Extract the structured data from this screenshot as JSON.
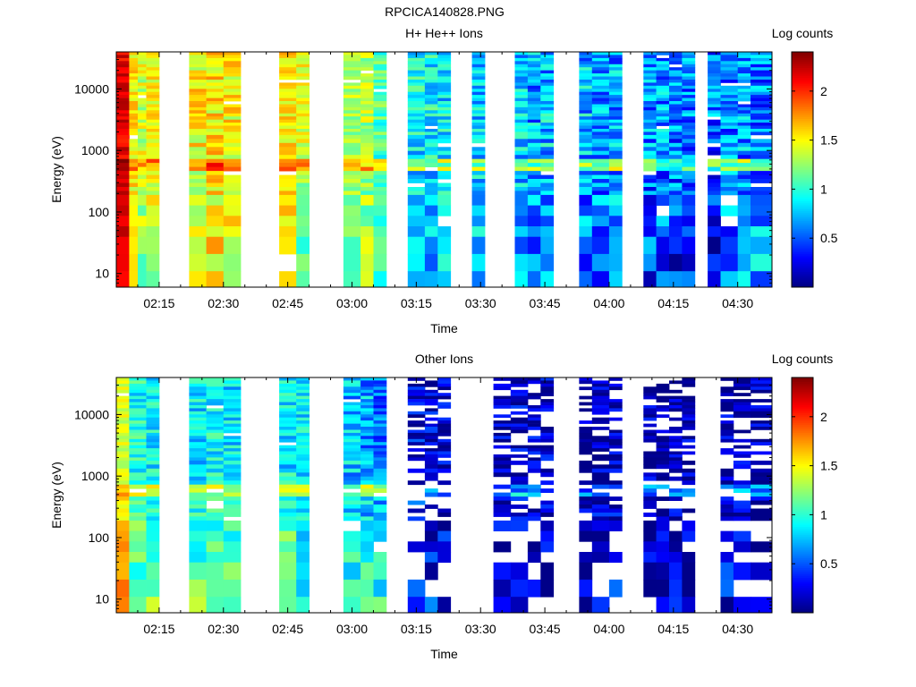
{
  "figure_title": "RPCICA140828.PNG",
  "chart_data": [
    {
      "type": "heatmap",
      "title": "H+ He++ Ions",
      "xlabel": "Time",
      "ylabel": "Energy (eV)",
      "yscale": "log",
      "ylim": [
        6,
        40000
      ],
      "xlim": [
        "02:05",
        "04:38"
      ],
      "x_ticks": [
        "02:15",
        "02:30",
        "02:45",
        "03:00",
        "03:15",
        "03:30",
        "03:45",
        "04:00",
        "04:15",
        "04:30"
      ],
      "y_ticks": [
        "10",
        "100",
        "1000",
        "10000"
      ],
      "colorbar": {
        "label": "Log counts",
        "range": [
          0,
          2.4
        ],
        "ticks": [
          "0.5",
          "1",
          "1.5",
          "2"
        ],
        "colormap": "jet"
      },
      "segments": [
        {
          "start": "02:05",
          "end": "02:08",
          "level": 2.15,
          "lowlevel": 2.2,
          "spread": 0.15
        },
        {
          "start": "02:08",
          "end": "02:10",
          "level": 1.55,
          "lowlevel": 1.4,
          "spread": 0.2
        },
        {
          "start": "02:10",
          "end": "02:12",
          "level": 1.4,
          "lowlevel": 1.25,
          "spread": 0.25
        },
        {
          "start": "02:12",
          "end": "02:15",
          "level": 1.5,
          "lowlevel": 1.3,
          "spread": 0.2
        },
        {
          "start": "02:22",
          "end": "02:26",
          "level": 1.5,
          "lowlevel": 1.3,
          "spread": 0.25
        },
        {
          "start": "02:26",
          "end": "02:30",
          "level": 1.55,
          "lowlevel": 1.5,
          "spread": 0.25
        },
        {
          "start": "02:30",
          "end": "02:34",
          "level": 1.5,
          "lowlevel": 1.4,
          "spread": 0.25
        },
        {
          "start": "02:43",
          "end": "02:47",
          "level": 1.55,
          "lowlevel": 1.55,
          "spread": 0.2
        },
        {
          "start": "02:47",
          "end": "02:50",
          "level": 1.45,
          "lowlevel": 1.0,
          "spread": 0.2
        },
        {
          "start": "02:58",
          "end": "03:02",
          "level": 1.3,
          "lowlevel": 1.1,
          "spread": 0.2
        },
        {
          "start": "03:02",
          "end": "03:05",
          "level": 1.3,
          "lowlevel": 1.2,
          "spread": 0.25
        },
        {
          "start": "03:05",
          "end": "03:08",
          "level": 1.1,
          "lowlevel": 0.95,
          "spread": 0.25
        },
        {
          "start": "03:13",
          "end": "03:17",
          "level": 0.9,
          "lowlevel": 0.6,
          "spread": 0.3
        },
        {
          "start": "03:17",
          "end": "03:20",
          "level": 0.9,
          "lowlevel": 0.6,
          "spread": 0.3
        },
        {
          "start": "03:20",
          "end": "03:23",
          "level": 0.85,
          "lowlevel": 0.7,
          "spread": 0.3
        },
        {
          "start": "03:28",
          "end": "03:31",
          "level": 0.8,
          "lowlevel": 0.7,
          "spread": 0.3
        },
        {
          "start": "03:38",
          "end": "03:41",
          "level": 0.8,
          "lowlevel": 0.7,
          "spread": 0.3
        },
        {
          "start": "03:41",
          "end": "03:44",
          "level": 0.7,
          "lowlevel": 0.4,
          "spread": 0.35
        },
        {
          "start": "03:44",
          "end": "03:47",
          "level": 0.75,
          "lowlevel": 0.6,
          "spread": 0.35
        },
        {
          "start": "03:53",
          "end": "03:56",
          "level": 0.75,
          "lowlevel": 0.45,
          "spread": 0.35
        },
        {
          "start": "03:56",
          "end": "04:00",
          "level": 0.7,
          "lowlevel": 0.55,
          "spread": 0.35
        },
        {
          "start": "04:00",
          "end": "04:03",
          "level": 0.7,
          "lowlevel": 0.55,
          "spread": 0.35
        },
        {
          "start": "04:08",
          "end": "04:11",
          "level": 0.65,
          "lowlevel": 0.35,
          "spread": 0.35
        },
        {
          "start": "04:11",
          "end": "04:14",
          "level": 0.65,
          "lowlevel": 0.4,
          "spread": 0.35
        },
        {
          "start": "04:14",
          "end": "04:17",
          "level": 0.6,
          "lowlevel": 0.35,
          "spread": 0.35
        },
        {
          "start": "04:17",
          "end": "04:20",
          "level": 0.6,
          "lowlevel": 0.3,
          "spread": 0.35
        },
        {
          "start": "04:23",
          "end": "04:26",
          "level": 0.55,
          "lowlevel": 0.2,
          "spread": 0.35
        },
        {
          "start": "04:26",
          "end": "04:30",
          "level": 0.6,
          "lowlevel": 0.5,
          "spread": 0.35
        },
        {
          "start": "04:30",
          "end": "04:33",
          "level": 0.65,
          "lowlevel": 0.6,
          "spread": 0.35
        },
        {
          "start": "04:33",
          "end": "04:38",
          "level": 0.6,
          "lowlevel": 0.7,
          "spread": 0.35
        }
      ]
    },
    {
      "type": "heatmap",
      "title": "Other Ions",
      "xlabel": "Time",
      "ylabel": "Energy (eV)",
      "yscale": "log",
      "ylim": [
        6,
        40000
      ],
      "xlim": [
        "02:05",
        "04:38"
      ],
      "x_ticks": [
        "02:15",
        "02:30",
        "02:45",
        "03:00",
        "03:15",
        "03:30",
        "03:45",
        "04:00",
        "04:15",
        "04:30"
      ],
      "y_ticks": [
        "10",
        "100",
        "1000",
        "10000"
      ],
      "colorbar": {
        "label": "Log counts",
        "range": [
          0,
          2.4
        ],
        "ticks": [
          "0.5",
          "1",
          "1.5",
          "2"
        ],
        "colormap": "jet"
      },
      "segments": [
        {
          "start": "02:05",
          "end": "02:08",
          "level": 1.4,
          "lowlevel": 1.9,
          "spread": 0.15
        },
        {
          "start": "02:08",
          "end": "02:12",
          "level": 0.95,
          "lowlevel": 1.2,
          "spread": 0.25
        },
        {
          "start": "02:12",
          "end": "02:15",
          "level": 0.9,
          "lowlevel": 1.2,
          "spread": 0.25
        },
        {
          "start": "02:22",
          "end": "02:26",
          "level": 0.85,
          "lowlevel": 1.15,
          "spread": 0.25
        },
        {
          "start": "02:26",
          "end": "02:30",
          "level": 0.9,
          "lowlevel": 1.2,
          "spread": 0.25
        },
        {
          "start": "02:30",
          "end": "02:34",
          "level": 0.85,
          "lowlevel": 1.2,
          "spread": 0.25
        },
        {
          "start": "02:43",
          "end": "02:47",
          "level": 0.85,
          "lowlevel": 1.25,
          "spread": 0.25
        },
        {
          "start": "02:47",
          "end": "02:50",
          "level": 0.85,
          "lowlevel": 1.0,
          "spread": 0.25
        },
        {
          "start": "02:58",
          "end": "03:02",
          "level": 0.75,
          "lowlevel": 1.1,
          "spread": 0.3
        },
        {
          "start": "03:02",
          "end": "03:05",
          "level": 0.7,
          "lowlevel": 1.05,
          "spread": 0.3
        },
        {
          "start": "03:05",
          "end": "03:08",
          "level": 0.6,
          "lowlevel": 1.0,
          "spread": 0.3
        },
        {
          "start": "03:13",
          "end": "03:17",
          "level": 0.25,
          "lowlevel": 0.6,
          "spread": 0.3
        },
        {
          "start": "03:17",
          "end": "03:20",
          "level": 0.2,
          "lowlevel": 0.4,
          "spread": 0.3
        },
        {
          "start": "03:20",
          "end": "03:23",
          "level": 0.15,
          "lowlevel": 0.3,
          "spread": 0.3
        },
        {
          "start": "03:33",
          "end": "03:37",
          "level": 0.15,
          "lowlevel": 0.2,
          "spread": 0.3
        },
        {
          "start": "03:37",
          "end": "03:41",
          "level": 0.2,
          "lowlevel": 0.4,
          "spread": 0.3
        },
        {
          "start": "03:41",
          "end": "03:44",
          "level": 0.15,
          "lowlevel": 0.25,
          "spread": 0.3
        },
        {
          "start": "03:44",
          "end": "03:47",
          "level": 0.15,
          "lowlevel": 0.15,
          "spread": 0.3
        },
        {
          "start": "03:53",
          "end": "03:56",
          "level": 0.1,
          "lowlevel": 0.1,
          "spread": 0.3
        },
        {
          "start": "03:56",
          "end": "04:00",
          "level": 0.1,
          "lowlevel": 0.3,
          "spread": 0.3
        },
        {
          "start": "04:00",
          "end": "04:03",
          "level": 0.1,
          "lowlevel": 0.35,
          "spread": 0.3
        },
        {
          "start": "04:08",
          "end": "04:11",
          "level": 0.1,
          "lowlevel": 0.1,
          "spread": 0.3
        },
        {
          "start": "04:11",
          "end": "04:14",
          "level": 0.1,
          "lowlevel": 0.1,
          "spread": 0.3
        },
        {
          "start": "04:14",
          "end": "04:17",
          "level": 0.1,
          "lowlevel": 0.15,
          "spread": 0.3
        },
        {
          "start": "04:17",
          "end": "04:20",
          "level": 0.1,
          "lowlevel": 0.1,
          "spread": 0.3
        },
        {
          "start": "04:26",
          "end": "04:29",
          "level": 0.1,
          "lowlevel": 0.3,
          "spread": 0.3
        },
        {
          "start": "04:29",
          "end": "04:33",
          "level": 0.1,
          "lowlevel": 0.3,
          "spread": 0.3
        },
        {
          "start": "04:33",
          "end": "04:38",
          "level": 0.1,
          "lowlevel": 0.2,
          "spread": 0.3
        }
      ]
    }
  ]
}
